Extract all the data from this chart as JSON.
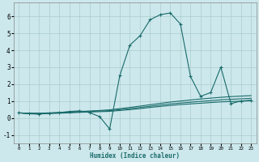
{
  "xlabel": "Humidex (Indice chaleur)",
  "xlim": [
    -0.5,
    23.5
  ],
  "ylim": [
    -1.5,
    6.8
  ],
  "yticks": [
    -1,
    0,
    1,
    2,
    3,
    4,
    5,
    6
  ],
  "xticks": [
    0,
    1,
    2,
    3,
    4,
    5,
    6,
    7,
    8,
    9,
    10,
    11,
    12,
    13,
    14,
    15,
    16,
    17,
    18,
    19,
    20,
    21,
    22,
    23
  ],
  "bg_color": "#cce8ec",
  "grid_color": "#aacccc",
  "line_color": "#1a6b6b",
  "line1_x": [
    0,
    1,
    2,
    3,
    4,
    5,
    6,
    7,
    8,
    9,
    10,
    11,
    12,
    13,
    14,
    15,
    16,
    17,
    18,
    19,
    20,
    21,
    22,
    23
  ],
  "line1_y": [
    0.3,
    0.25,
    0.22,
    0.28,
    0.32,
    0.38,
    0.42,
    0.32,
    0.08,
    -0.65,
    2.5,
    4.3,
    4.85,
    5.8,
    6.1,
    6.2,
    5.55,
    2.45,
    1.28,
    1.5,
    3.0,
    0.85,
    1.0,
    1.05
  ],
  "line2_x": [
    0,
    1,
    2,
    3,
    4,
    5,
    6,
    7,
    8,
    9,
    10,
    11,
    12,
    13,
    14,
    15,
    16,
    17,
    18,
    19,
    20,
    21,
    22,
    23
  ],
  "line2_y": [
    0.3,
    0.28,
    0.28,
    0.3,
    0.32,
    0.35,
    0.38,
    0.41,
    0.44,
    0.48,
    0.55,
    0.62,
    0.7,
    0.78,
    0.86,
    0.94,
    1.0,
    1.06,
    1.12,
    1.17,
    1.22,
    1.26,
    1.29,
    1.32
  ],
  "line3_x": [
    0,
    1,
    2,
    3,
    4,
    5,
    6,
    7,
    8,
    9,
    10,
    11,
    12,
    13,
    14,
    15,
    16,
    17,
    18,
    19,
    20,
    21,
    22,
    23
  ],
  "line3_y": [
    0.3,
    0.27,
    0.27,
    0.28,
    0.3,
    0.33,
    0.36,
    0.38,
    0.41,
    0.43,
    0.49,
    0.55,
    0.62,
    0.69,
    0.76,
    0.83,
    0.88,
    0.93,
    0.98,
    1.02,
    1.07,
    1.1,
    1.13,
    1.16
  ],
  "line4_x": [
    0,
    1,
    2,
    3,
    4,
    5,
    6,
    7,
    8,
    9,
    10,
    11,
    12,
    13,
    14,
    15,
    16,
    17,
    18,
    19,
    20,
    21,
    22,
    23
  ],
  "line4_y": [
    0.3,
    0.26,
    0.25,
    0.26,
    0.28,
    0.3,
    0.33,
    0.35,
    0.37,
    0.39,
    0.44,
    0.49,
    0.55,
    0.62,
    0.68,
    0.74,
    0.79,
    0.83,
    0.87,
    0.91,
    0.95,
    0.97,
    0.99,
    1.02
  ]
}
